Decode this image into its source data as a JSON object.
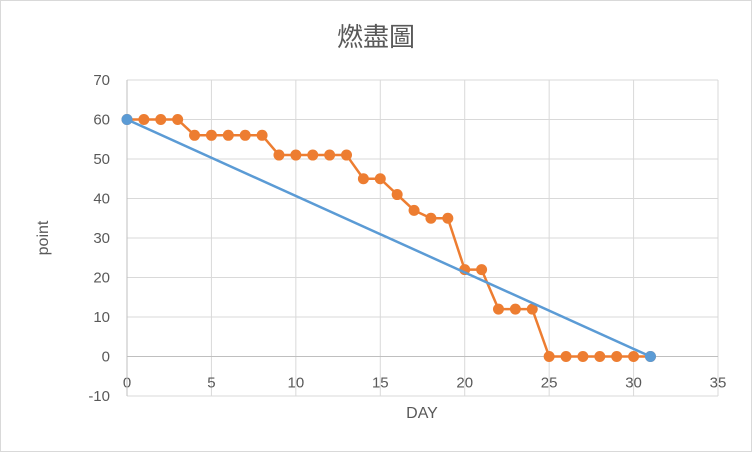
{
  "chart_data": {
    "type": "scatter",
    "title": "燃盡圖",
    "xlabel": "DAY",
    "ylabel": "point",
    "xlim": [
      0,
      35
    ],
    "ylim": [
      -10,
      70
    ],
    "x_ticks": [
      "0",
      "5",
      "10",
      "15",
      "20",
      "25",
      "30",
      "35"
    ],
    "y_ticks": [
      "-10",
      "0",
      "10",
      "20",
      "30",
      "40",
      "50",
      "60",
      "70"
    ],
    "grid": true,
    "legend": "none",
    "series": [
      {
        "color": "#ED7D31",
        "points": [
          [
            0,
            60
          ],
          [
            1,
            60
          ],
          [
            2,
            60
          ],
          [
            3,
            60
          ],
          [
            4,
            56
          ],
          [
            5,
            56
          ],
          [
            6,
            56
          ],
          [
            7,
            56
          ],
          [
            8,
            56
          ],
          [
            9,
            51
          ],
          [
            10,
            51
          ],
          [
            11,
            51
          ],
          [
            12,
            51
          ],
          [
            13,
            51
          ],
          [
            14,
            45
          ],
          [
            15,
            45
          ],
          [
            16,
            41
          ],
          [
            17,
            37
          ],
          [
            18,
            35
          ],
          [
            19,
            35
          ],
          [
            20,
            22
          ],
          [
            21,
            22
          ],
          [
            22,
            12
          ],
          [
            23,
            12
          ],
          [
            24,
            12
          ],
          [
            25,
            0
          ],
          [
            26,
            0
          ],
          [
            27,
            0
          ],
          [
            28,
            0
          ],
          [
            29,
            0
          ],
          [
            30,
            0
          ],
          [
            31,
            0
          ]
        ]
      },
      {
        "color": "#5B9BD5",
        "points": [
          [
            0,
            60
          ],
          [
            31,
            0
          ]
        ]
      }
    ]
  }
}
